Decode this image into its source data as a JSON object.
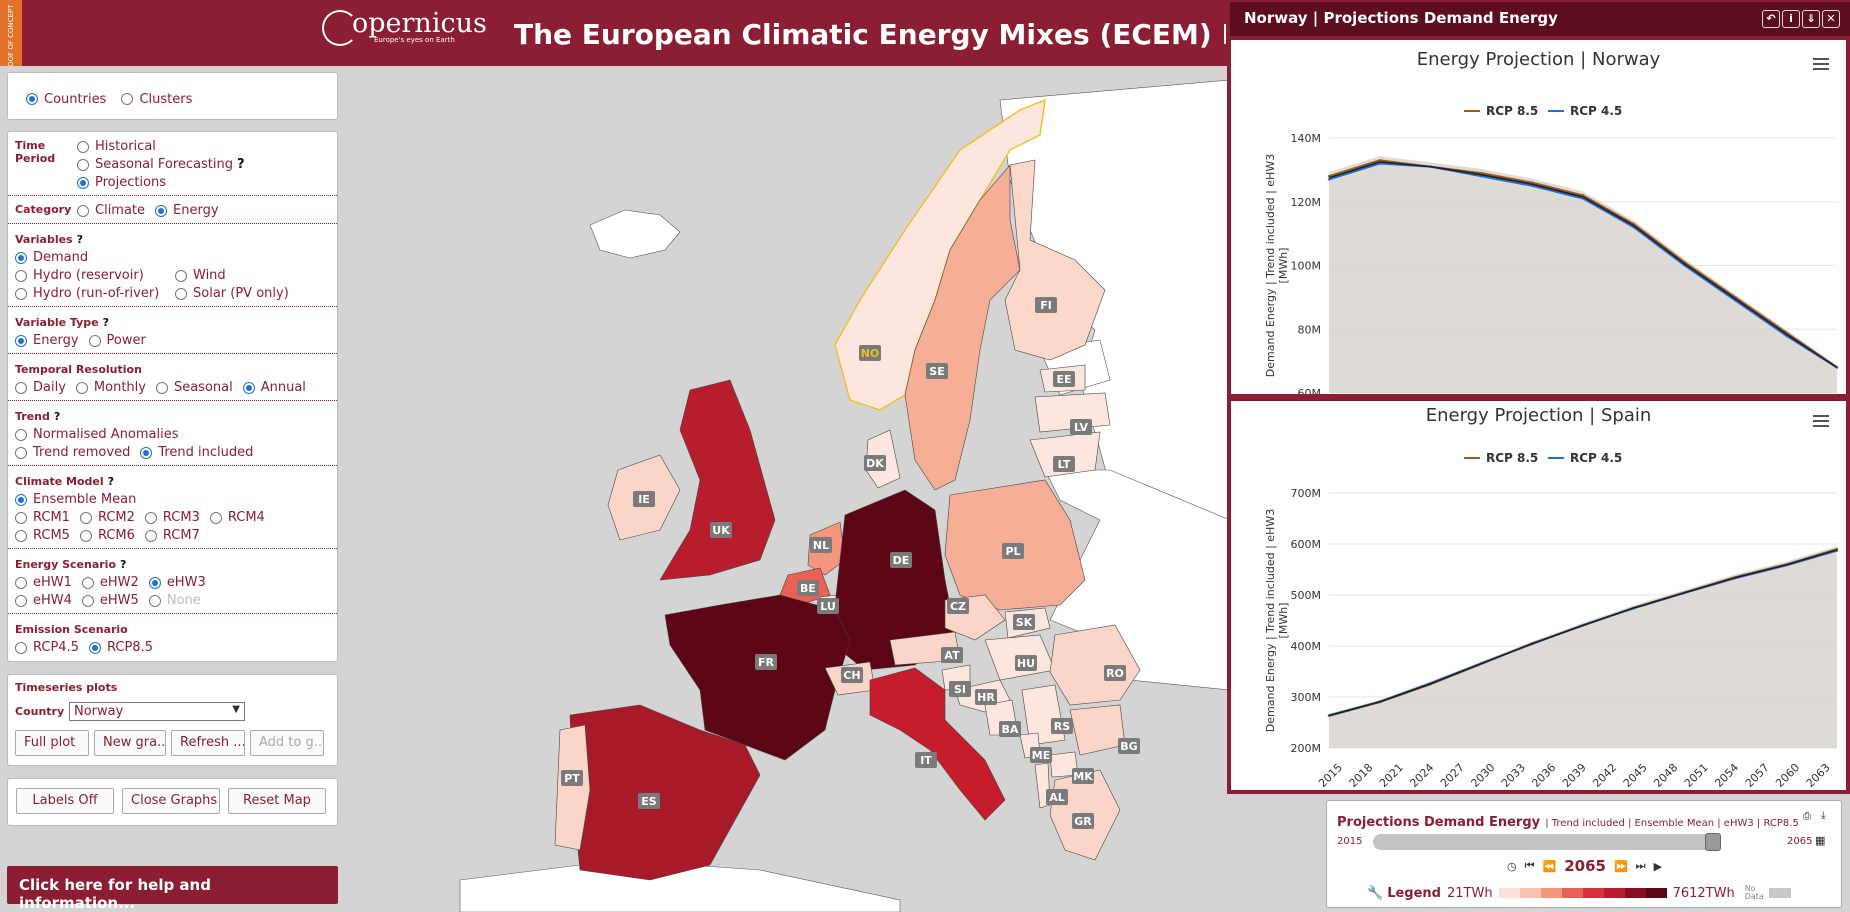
{
  "header": {
    "poc_label": "PROOF OF CONCEPT",
    "logo_word": "opernicus",
    "logo_sub": "Europe's eyes on Earth",
    "title": "The European Climatic Energy Mixes (ECEM) Demonstrator"
  },
  "geo_toggle": {
    "options": [
      {
        "label": "Countries",
        "selected": true
      },
      {
        "label": "Clusters",
        "selected": false
      }
    ]
  },
  "controls": {
    "time_period": {
      "title": "Time Period",
      "options": [
        "Historical",
        "Seasonal Forecasting",
        "Projections"
      ],
      "selected": 2
    },
    "category": {
      "title": "Category",
      "options": [
        "Climate",
        "Energy"
      ],
      "selected": 1
    },
    "variables": {
      "title": "Variables",
      "options": [
        "Demand",
        "Hydro (reservoir)",
        "Wind",
        "Hydro (run-of-river)",
        "Solar (PV only)"
      ],
      "selected": 0
    },
    "variable_type": {
      "title": "Variable Type",
      "options": [
        "Energy",
        "Power"
      ],
      "selected": 0
    },
    "temporal_resolution": {
      "title": "Temporal Resolution",
      "options": [
        "Daily",
        "Monthly",
        "Seasonal",
        "Annual"
      ],
      "selected": 3
    },
    "trend": {
      "title": "Trend",
      "options": [
        "Normalised Anomalies",
        "Trend removed",
        "Trend included"
      ],
      "selected": 2
    },
    "climate_model": {
      "title": "Climate Model",
      "options": [
        "Ensemble Mean",
        "RCM1",
        "RCM2",
        "RCM3",
        "RCM4",
        "RCM5",
        "RCM6",
        "RCM7"
      ],
      "selected": 0
    },
    "energy_scenario": {
      "title": "Energy Scenario",
      "options": [
        "eHW1",
        "eHW2",
        "eHW3",
        "eHW4",
        "eHW5",
        "None"
      ],
      "selected": 2
    },
    "emission_scenario": {
      "title": "Emission Scenario",
      "options": [
        "RCP4.5",
        "RCP8.5"
      ],
      "selected": 1
    },
    "help_mark": "?"
  },
  "timeseries": {
    "title": "Timeseries plots",
    "country_label": "Country",
    "country_value": "Norway",
    "buttons": [
      "Full plot",
      "New gra...",
      "Refresh ...",
      "Add to g..."
    ]
  },
  "map_buttons": [
    "Labels Off",
    "Close Graphs",
    "Reset Map"
  ],
  "help_bar": "Click here for help and information...",
  "norway_window": {
    "header": "Norway | Projections Demand Energy",
    "chart_title": "Energy Projection | Norway",
    "ylabel": "Demand Energy | Trend included | eHW3 [MWh]",
    "yticks": [
      "140M",
      "120M",
      "100M",
      "80M",
      "60M"
    ]
  },
  "spain_window": {
    "chart_title": "Energy Projection | Spain",
    "ylabel": "Demand Energy | Trend included | eHW3 [MWh]",
    "yticks": [
      "700M",
      "600M",
      "500M",
      "400M",
      "300M",
      "200M"
    ],
    "xticks": [
      "2015",
      "2018",
      "2021",
      "2024",
      "2027",
      "2030",
      "2033",
      "2036",
      "2039",
      "2042",
      "2045",
      "2048",
      "2051",
      "2054",
      "2057",
      "2060",
      "2063"
    ]
  },
  "legend": {
    "rcp85": "RCP 8.5",
    "rcp45": "RCP 4.5",
    "rcp85_color": "#a0571e",
    "rcp45_color": "#1f6fd6"
  },
  "chart_data": [
    {
      "type": "line",
      "title": "Energy Projection | Norway",
      "ylabel": "Demand Energy | Trend included | eHW3 [MWh]",
      "ylim": [
        60000000,
        140000000
      ],
      "x": [
        2015,
        2020,
        2025,
        2030,
        2035,
        2040,
        2045,
        2050,
        2055,
        2060,
        2065
      ],
      "series": [
        {
          "name": "RCP 8.5",
          "values": [
            128000000,
            133000000,
            131000000,
            129000000,
            126000000,
            122000000,
            113000000,
            101000000,
            90000000,
            79000000,
            68000000
          ]
        },
        {
          "name": "RCP 4.5",
          "values": [
            127000000,
            132000000,
            131000000,
            128000000,
            125000000,
            121000000,
            112000000,
            100000000,
            89000000,
            78000000,
            68000000
          ]
        }
      ]
    },
    {
      "type": "line",
      "title": "Energy Projection | Spain",
      "ylabel": "Demand Energy | Trend included | eHW3 [MWh]",
      "ylim": [
        200000000,
        700000000
      ],
      "x": [
        2015,
        2020,
        2025,
        2030,
        2035,
        2040,
        2045,
        2050,
        2055,
        2060,
        2065
      ],
      "series": [
        {
          "name": "RCP 8.5",
          "values": [
            263000000,
            290000000,
            325000000,
            365000000,
            405000000,
            440000000,
            475000000,
            505000000,
            535000000,
            560000000,
            590000000
          ]
        },
        {
          "name": "RCP 4.5",
          "values": [
            264000000,
            291000000,
            327000000,
            366000000,
            404000000,
            441000000,
            474000000,
            504000000,
            533000000,
            558000000,
            587000000
          ]
        }
      ]
    }
  ],
  "timebar": {
    "title": "Projections Demand Energy",
    "subtitle": "| Trend included | Ensemble Mean | eHW3 | RCP8.5",
    "start": "2015",
    "end": "2065",
    "current": "2065",
    "legend_label": "Legend",
    "legend_min": "21TWh",
    "legend_max": "7612TWh",
    "no_data": "No Data",
    "scale_colors": [
      "#fde0d9",
      "#f9c1b0",
      "#f4977d",
      "#ea6256",
      "#d8323c",
      "#b81d2e",
      "#8a0e22",
      "#5c0514"
    ]
  },
  "countries": [
    {
      "code": "NO",
      "fill": "#fde6dd"
    },
    {
      "code": "SE",
      "fill": "#f7ae96"
    },
    {
      "code": "FI",
      "fill": "#fbd8ca"
    },
    {
      "code": "EE",
      "fill": "#fde6dd"
    },
    {
      "code": "LV",
      "fill": "#fde6dd"
    },
    {
      "code": "LT",
      "fill": "#fde6dd"
    },
    {
      "code": "DK",
      "fill": "#fde6dd"
    },
    {
      "code": "IE",
      "fill": "#fbd5c8"
    },
    {
      "code": "UK",
      "fill": "#b81d2e"
    },
    {
      "code": "NL",
      "fill": "#f4977d"
    },
    {
      "code": "BE",
      "fill": "#ea6256"
    },
    {
      "code": "LU",
      "fill": "#fde6dd"
    },
    {
      "code": "DE",
      "fill": "#5c0514"
    },
    {
      "code": "PL",
      "fill": "#f7ae96"
    },
    {
      "code": "CZ",
      "fill": "#fbd5c8"
    },
    {
      "code": "SK",
      "fill": "#fde6dd"
    },
    {
      "code": "FR",
      "fill": "#5c0514"
    },
    {
      "code": "CH",
      "fill": "#fbd5c8"
    },
    {
      "code": "AT",
      "fill": "#fbd5c8"
    },
    {
      "code": "HU",
      "fill": "#fde6dd"
    },
    {
      "code": "RO",
      "fill": "#fbd5c8"
    },
    {
      "code": "SI",
      "fill": "#fde6dd"
    },
    {
      "code": "HR",
      "fill": "#fde6dd"
    },
    {
      "code": "BA",
      "fill": "#fde6dd"
    },
    {
      "code": "RS",
      "fill": "#fde6dd"
    },
    {
      "code": "ME",
      "fill": "#fde6dd"
    },
    {
      "code": "BG",
      "fill": "#fbd5c8"
    },
    {
      "code": "MK",
      "fill": "#fde6dd"
    },
    {
      "code": "AL",
      "fill": "#fde6dd"
    },
    {
      "code": "GR",
      "fill": "#fbd5c8"
    },
    {
      "code": "IT",
      "fill": "#c71c2c"
    },
    {
      "code": "ES",
      "fill": "#a8192a"
    },
    {
      "code": "PT",
      "fill": "#fbd5c8"
    }
  ]
}
